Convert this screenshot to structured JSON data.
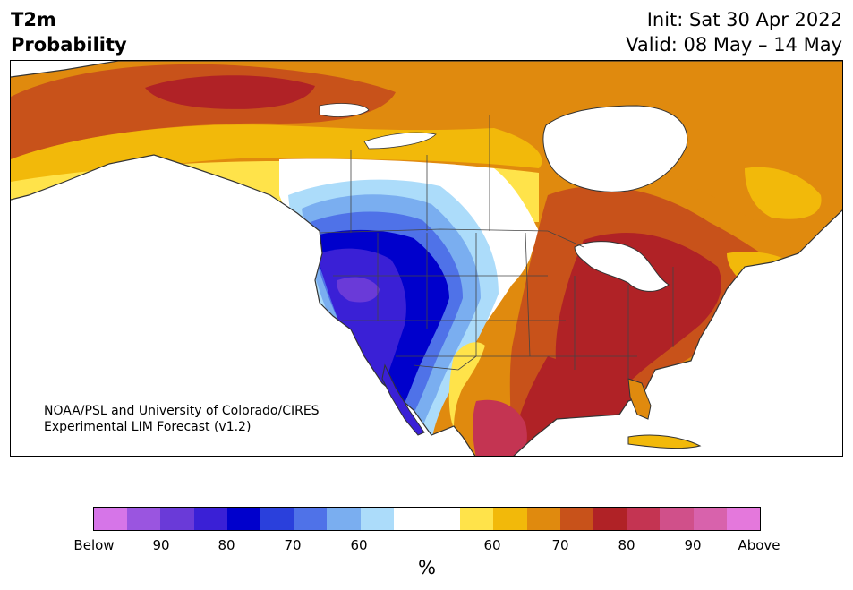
{
  "header": {
    "variable": "T2m",
    "product": "Probability",
    "init": "Init: Sat 30 Apr 2022",
    "valid": "Valid: 08 May – 14 May"
  },
  "attribution": {
    "line1": "NOAA/PSL and University of Colorado/CIRES",
    "line2": "Experimental LIM Forecast (v1.2)"
  },
  "colorbar": {
    "unit": "%",
    "bins": [
      {
        "color": "#d675e8"
      },
      {
        "color": "#9a55e0"
      },
      {
        "color": "#6a3ad8"
      },
      {
        "color": "#3a20d6"
      },
      {
        "color": "#0000cc"
      },
      {
        "color": "#2a40dc"
      },
      {
        "color": "#4f72e8"
      },
      {
        "color": "#7aaef0"
      },
      {
        "color": "#acdcfa"
      },
      {
        "color": "#ffffff"
      },
      {
        "color": "#ffffff"
      },
      {
        "color": "#ffe34a"
      },
      {
        "color": "#f2b90a"
      },
      {
        "color": "#e08a0e"
      },
      {
        "color": "#c8521a"
      },
      {
        "color": "#b02226"
      },
      {
        "color": "#c43452"
      },
      {
        "color": "#d0508a"
      },
      {
        "color": "#d862ac"
      },
      {
        "color": "#e478dc"
      }
    ],
    "tick_labels": [
      "Below",
      "90",
      "80",
      "70",
      "60",
      "60",
      "70",
      "80",
      "90",
      "Above"
    ]
  }
}
